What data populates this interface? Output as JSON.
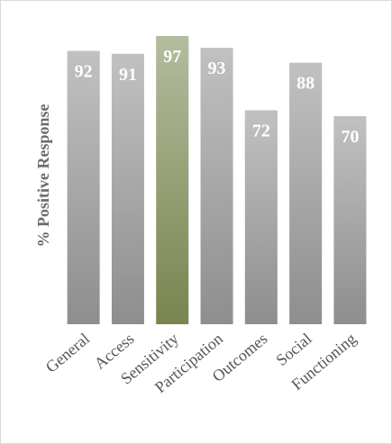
{
  "chart_data": {
    "type": "bar",
    "y_label": "% Positive Response",
    "categories": [
      "General",
      "Access",
      "Sensitivity",
      "Participation",
      "Outcomes",
      "Social",
      "Functioning"
    ],
    "values": [
      92,
      91,
      97,
      93,
      72,
      88,
      70
    ],
    "colors": [
      "#8e8e8e",
      "#8e8e8e",
      "#77854f",
      "#8e8e8e",
      "#8e8e8e",
      "#8e8e8e",
      "#8e8e8e"
    ]
  }
}
